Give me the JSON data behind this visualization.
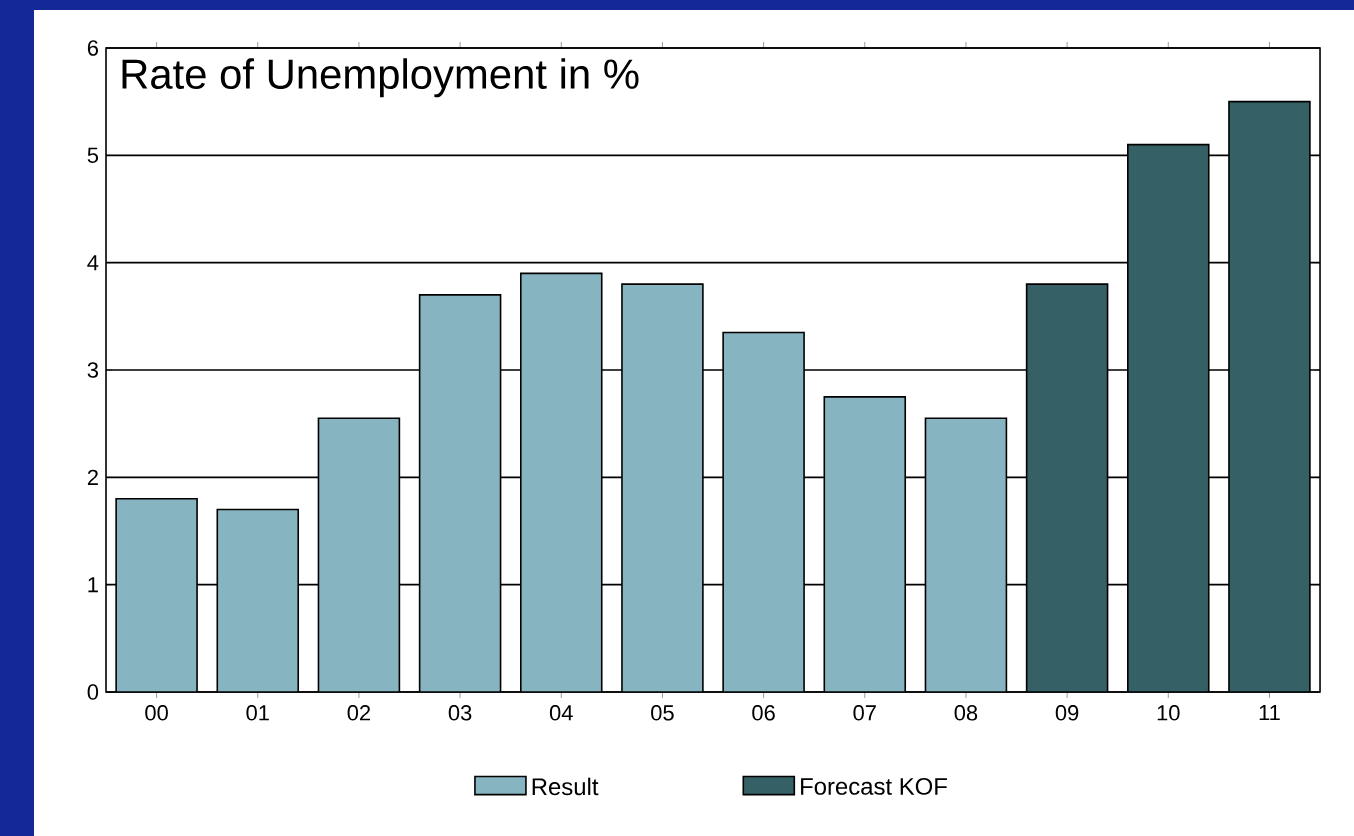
{
  "chart_data": {
    "type": "bar",
    "title": "Rate of Unemployment in %",
    "categories": [
      "00",
      "01",
      "02",
      "03",
      "04",
      "05",
      "06",
      "07",
      "08",
      "09",
      "10",
      "11"
    ],
    "series": [
      {
        "name": "Result",
        "color": "#86b4c0",
        "values": [
          1.8,
          1.7,
          2.55,
          3.7,
          3.9,
          3.8,
          3.35,
          2.75,
          2.55,
          null,
          null,
          null
        ]
      },
      {
        "name": "Forecast KOF",
        "color": "#356066",
        "values": [
          null,
          null,
          null,
          null,
          null,
          null,
          null,
          null,
          null,
          3.8,
          5.1,
          5.5
        ]
      }
    ],
    "ylim": [
      0,
      6
    ],
    "yticks": [
      0,
      1,
      2,
      3,
      4,
      5,
      6
    ],
    "grid": "y",
    "legend": "bottom"
  }
}
